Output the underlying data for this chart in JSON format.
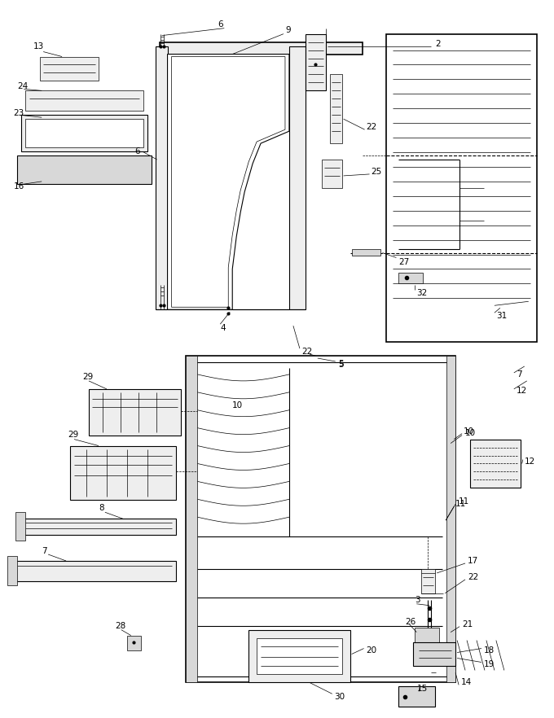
{
  "bg_color": "#ffffff",
  "line_color": "#000000",
  "gray_fill": "#d8d8d8",
  "light_fill": "#eeeeee",
  "mid_fill": "#bbbbbb",
  "lw_thin": 0.5,
  "lw_med": 0.8,
  "lw_thick": 1.2,
  "label_fs": 7.5,
  "figsize": [
    6.8,
    8.82
  ],
  "dpi": 100
}
